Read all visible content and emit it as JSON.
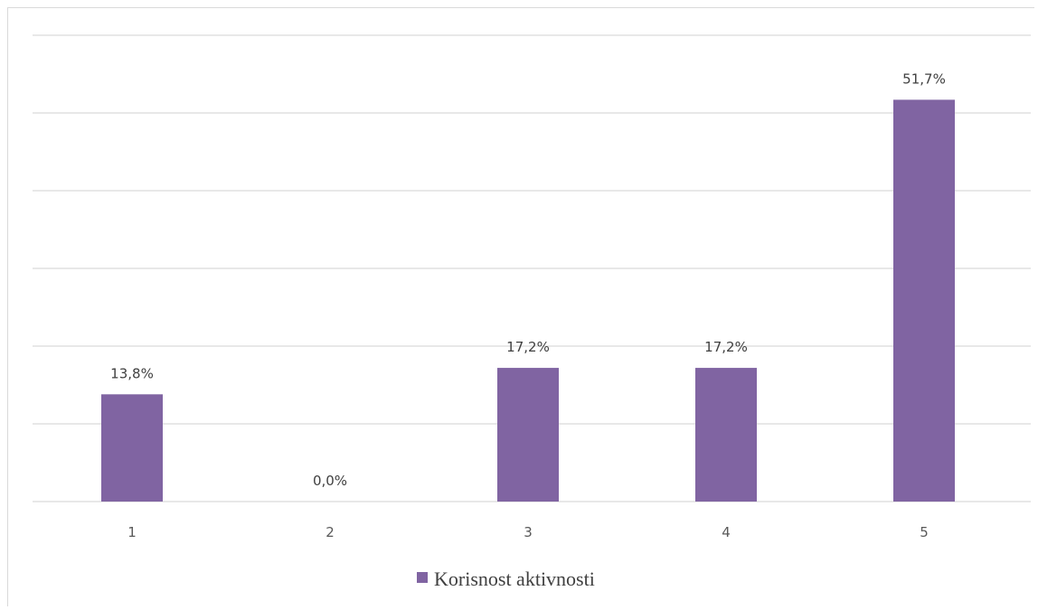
{
  "chart_data": {
    "type": "bar",
    "categories": [
      "1",
      "2",
      "3",
      "4",
      "5"
    ],
    "series": [
      {
        "name": "Korisnost aktivnosti",
        "values": [
          13.8,
          0.0,
          17.2,
          17.2,
          51.7
        ],
        "labels": [
          "13,8%",
          "0,0%",
          "17,2%",
          "17,2%",
          "51,7%"
        ],
        "color": "#8064a2"
      }
    ],
    "ylim": [
      0,
      60
    ],
    "grid": true,
    "legend": "bottom"
  }
}
